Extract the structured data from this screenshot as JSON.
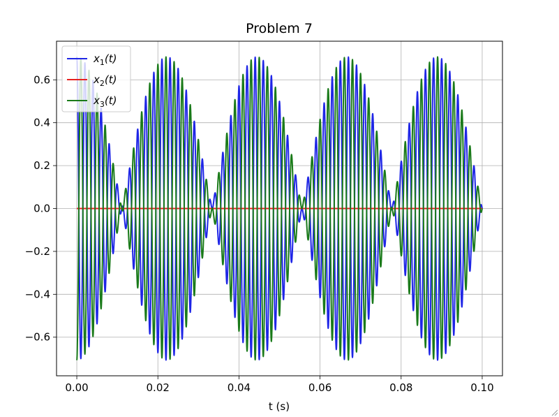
{
  "chart_data": {
    "type": "line",
    "title": "Problem 7",
    "xlabel": "t (s)",
    "ylabel": "",
    "xlim": [
      -0.005,
      0.105
    ],
    "ylim": [
      -0.78,
      0.78
    ],
    "grid": true,
    "legend_position": "top-left",
    "xticks": [
      0.0,
      0.02,
      0.04,
      0.06,
      0.08,
      0.1
    ],
    "xtick_labels": [
      "0.00",
      "0.02",
      "0.04",
      "0.06",
      "0.08",
      "0.10"
    ],
    "yticks": [
      -0.6,
      -0.4,
      -0.2,
      0.0,
      0.2,
      0.4,
      0.6
    ],
    "ytick_labels": [
      "−0.6",
      "−0.4",
      "−0.2",
      "0.0",
      "0.2",
      "0.4",
      "0.6"
    ],
    "t_range": [
      0.0,
      0.1
    ],
    "series": [
      {
        "name": "x1(t)",
        "label_base": "x",
        "label_sub": "1",
        "label_arg": "(t)",
        "color": "#1f26e6",
        "amplitude": 0.707,
        "carrier_hz": 500,
        "envelope_hz": 22.5,
        "envelope": "cos",
        "phase": "cos"
      },
      {
        "name": "x2(t)",
        "label_base": "x",
        "label_sub": "2",
        "label_arg": "(t)",
        "color": "#e62020",
        "amplitude": 0.0,
        "carrier_hz": 500,
        "envelope_hz": 22.5,
        "envelope": "cos",
        "phase": "cos"
      },
      {
        "name": "x3(t)",
        "label_base": "x",
        "label_sub": "3",
        "label_arg": "(t)",
        "color": "#1a7a1a",
        "amplitude": -0.707,
        "carrier_hz": 500,
        "envelope_hz": 22.5,
        "envelope": "cos",
        "phase": "cos"
      }
    ]
  }
}
